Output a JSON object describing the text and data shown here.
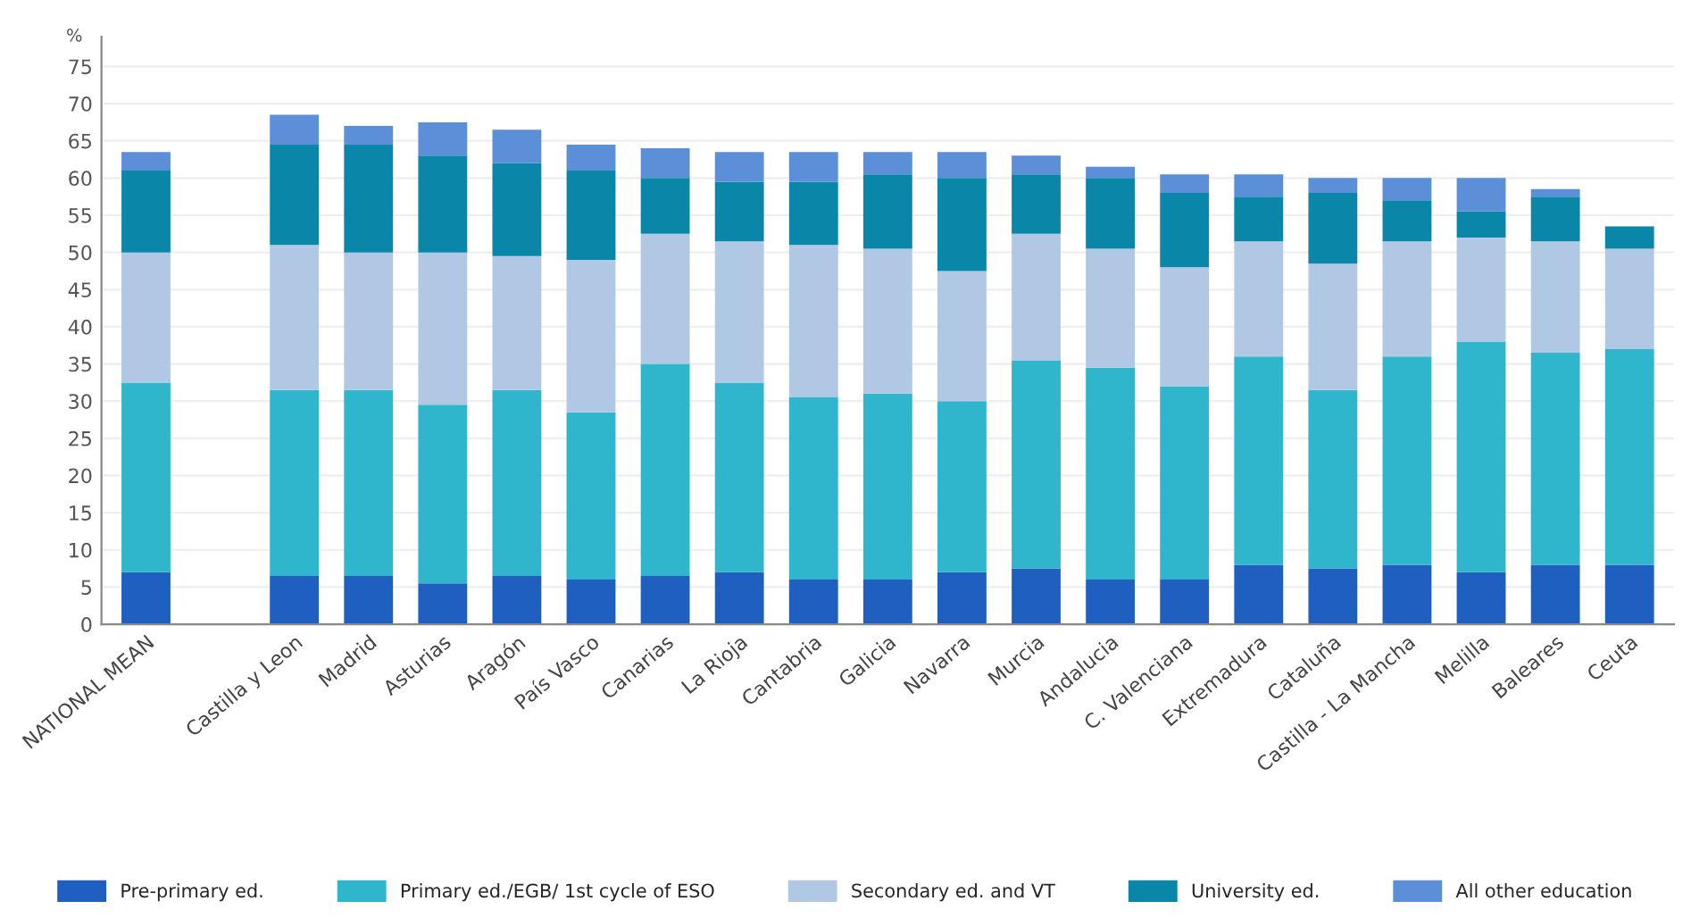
{
  "chart_data": {
    "type": "bar",
    "stacked": true,
    "ylabel": "%",
    "categories": [
      "NATIONAL MEAN",
      null,
      "Castilla y Leon",
      "Madrid",
      "Asturias",
      "Aragón",
      "País Vasco",
      "Canarias",
      "La Rioja",
      "Cantabria",
      "Galicia",
      "Navarra",
      "Murcia",
      "Andalucia",
      "C. Valenciana",
      "Extremadura",
      "Cataluña",
      "Castilla - La Mancha",
      "Melilla",
      "Baleares",
      "Ceuta"
    ],
    "series": [
      {
        "name": "Pre-primary ed.",
        "color": "#1f5fc0",
        "values": [
          7,
          null,
          6.5,
          6.5,
          5.5,
          6.5,
          6,
          6.5,
          7,
          6,
          6,
          7,
          7.5,
          6,
          6,
          8,
          7.5,
          8,
          7,
          8,
          8
        ]
      },
      {
        "name": "Primary ed./EGB/ 1st cycle of ESO",
        "color": "#2fb5cc",
        "values": [
          25.5,
          null,
          25,
          25,
          24,
          25,
          22.5,
          28.5,
          25.5,
          24.5,
          25,
          23,
          28,
          28.5,
          26,
          28,
          24,
          28,
          31,
          28.5,
          29
        ]
      },
      {
        "name": "Secondary ed. and VT",
        "color": "#b0c8e4",
        "values": [
          17.5,
          null,
          19.5,
          18.5,
          20.5,
          18,
          20.5,
          17.5,
          19,
          20.5,
          19.5,
          17.5,
          17,
          16,
          16,
          15.5,
          17,
          15.5,
          14,
          15,
          13.5
        ]
      },
      {
        "name": "University ed.",
        "color": "#0a86a8",
        "values": [
          11,
          null,
          13.5,
          14.5,
          13,
          12.5,
          12,
          7.5,
          8,
          8.5,
          10,
          12.5,
          8,
          9.5,
          10,
          6,
          9.5,
          5.5,
          3.5,
          6,
          3
        ]
      },
      {
        "name": "All other education",
        "color": "#5b8fd8",
        "values": [
          2.5,
          null,
          4,
          2.5,
          4.5,
          4.5,
          3.5,
          4,
          4,
          4,
          3,
          3.5,
          2.5,
          1.5,
          2.5,
          3,
          2,
          3,
          4.5,
          1,
          0
        ]
      }
    ],
    "ylim": [
      0,
      79
    ],
    "yticks": [
      0,
      5,
      10,
      15,
      20,
      25,
      30,
      35,
      40,
      45,
      50,
      55,
      60,
      65,
      70,
      75
    ],
    "grid": "y",
    "legend": "bottom"
  }
}
